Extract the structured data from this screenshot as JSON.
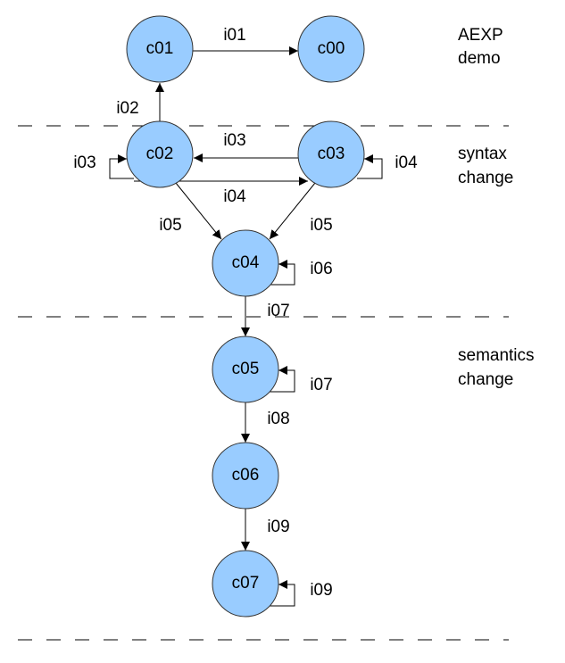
{
  "nodes": [
    {
      "label": "c01"
    },
    {
      "label": "c00"
    },
    {
      "label": "c02"
    },
    {
      "label": "c03"
    },
    {
      "label": "c04"
    },
    {
      "label": "c05"
    },
    {
      "label": "c06"
    },
    {
      "label": "c07"
    }
  ],
  "edges": [
    {
      "label": "i01"
    },
    {
      "label": "i02"
    },
    {
      "label": "i03"
    },
    {
      "label": "i03"
    },
    {
      "label": "i04"
    },
    {
      "label": "i04"
    },
    {
      "label": "i05"
    },
    {
      "label": "i05"
    },
    {
      "label": "i06"
    },
    {
      "label": "i07"
    },
    {
      "label": "i07"
    },
    {
      "label": "i08"
    },
    {
      "label": "i09"
    },
    {
      "label": "i09"
    }
  ],
  "sections": [
    {
      "lines": [
        "AEXP",
        "demo"
      ]
    },
    {
      "lines": [
        "syntax",
        "change"
      ]
    },
    {
      "lines": [
        "semantics",
        "change"
      ]
    }
  ]
}
